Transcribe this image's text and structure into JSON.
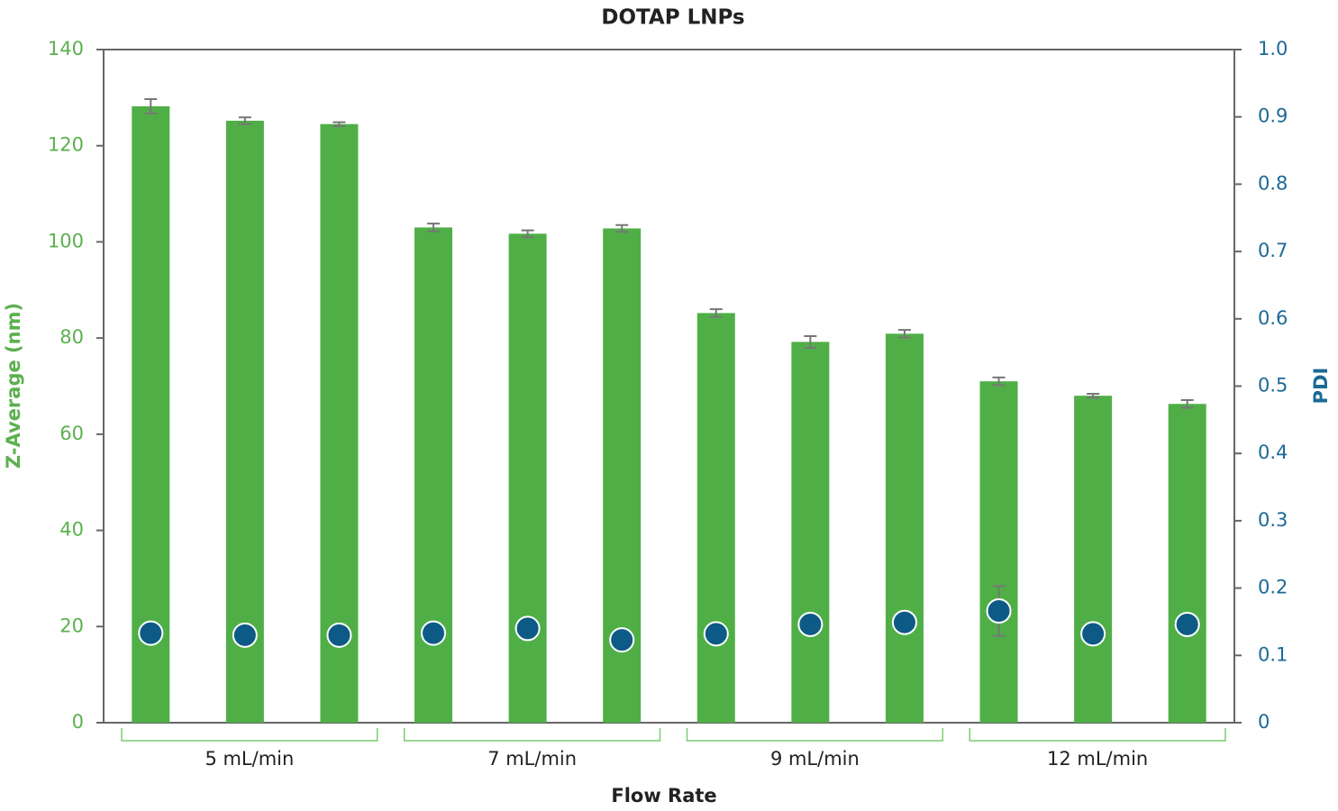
{
  "chart_data": {
    "type": "bar",
    "title": "DOTAP LNPs",
    "x_label": "Flow Rate",
    "y_label": "Z-Average (nm)",
    "y2_label": "PDI",
    "categories": [
      null,
      null,
      null,
      null,
      null,
      null,
      null,
      null,
      null,
      null,
      null,
      null
    ],
    "groups": [
      "5 mL/min",
      "7 mL/min",
      "9 mL/min",
      "12 mL/min"
    ],
    "series": [
      {
        "type": "bar",
        "color": "#4faf46",
        "values": [
          128.2,
          125.2,
          124.5,
          103,
          101.7,
          102.8,
          85.2,
          79.2,
          80.9,
          71,
          68,
          66.3
        ],
        "errors": [
          1.5,
          0.7,
          0.4,
          0.8,
          0.7,
          0.7,
          0.8,
          1.2,
          0.8,
          0.8,
          0.4,
          0.8
        ]
      },
      {
        "type": "scatter",
        "axis": "y2",
        "color": "#0e5a86",
        "values": [
          0.133,
          0.13,
          0.13,
          0.133,
          0.14,
          0.123,
          0.132,
          0.146,
          0.149,
          0.166,
          0.132,
          0.146
        ],
        "errors": [
          0.015,
          0.005,
          0.008,
          0.005,
          0.005,
          0.005,
          0.005,
          0.005,
          0.005,
          0.037,
          0.005,
          0.005
        ]
      }
    ],
    "ylim": [
      0,
      140
    ],
    "yticks": [
      0,
      20,
      40,
      60,
      80,
      100,
      120,
      140
    ],
    "y2lim": [
      0,
      1
    ],
    "y2ticks": [
      0,
      0.1,
      0.2,
      0.3,
      0.4,
      0.5,
      0.6,
      0.7,
      0.8,
      0.9,
      {
        "value": 1,
        "label": "1.0"
      }
    ]
  }
}
